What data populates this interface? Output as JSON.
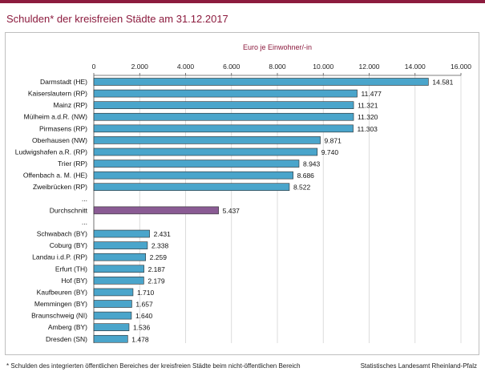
{
  "title": "Schulden* der kreisfreien Städte am 31.12.2017",
  "footnote": "* Schulden des integrierten öffentlichen Bereiches der kreisfreien Städte beim nicht-öffentlichen Bereich",
  "source": "Statistisches Landesamt Rheinland-Pfalz",
  "colors": {
    "bar": "#4aa5cb",
    "highlight": "#8a5b94",
    "accent": "#8c1b3e"
  },
  "chart_data": {
    "type": "bar",
    "orientation": "horizontal",
    "axis_title": "Euro je Einwohner/-in",
    "xlim": [
      0,
      16000
    ],
    "ticks": [
      0,
      2000,
      4000,
      6000,
      8000,
      10000,
      12000,
      14000,
      16000
    ],
    "tick_labels": [
      "0",
      "2.000",
      "4.000",
      "6.000",
      "8.000",
      "10.000",
      "12.000",
      "14.000",
      "16.000"
    ],
    "gridlines": true,
    "rows": [
      {
        "label": "Darmstadt (HE)",
        "value": 14581,
        "value_label": "14.581"
      },
      {
        "label": "Kaiserslautern (RP)",
        "value": 11477,
        "value_label": "11.477"
      },
      {
        "label": "Mainz (RP)",
        "value": 11321,
        "value_label": "11.321"
      },
      {
        "label": "Mülheim a.d.R. (NW)",
        "value": 11320,
        "value_label": "11.320"
      },
      {
        "label": "Pirmasens (RP)",
        "value": 11303,
        "value_label": "11.303"
      },
      {
        "label": "Oberhausen (NW)",
        "value": 9871,
        "value_label": "9.871"
      },
      {
        "label": "Ludwigshafen a.R. (RP)",
        "value": 9740,
        "value_label": "9.740"
      },
      {
        "label": "Trier (RP)",
        "value": 8943,
        "value_label": "8.943"
      },
      {
        "label": "Offenbach a. M. (HE)",
        "value": 8686,
        "value_label": "8.686"
      },
      {
        "label": "Zweibrücken (RP)",
        "value": 8522,
        "value_label": "8.522"
      },
      {
        "label": "...",
        "value": null,
        "value_label": ""
      },
      {
        "label": "Durchschnitt",
        "value": 5437,
        "value_label": "5.437",
        "highlight": true
      },
      {
        "label": "...",
        "value": null,
        "value_label": ""
      },
      {
        "label": "Schwabach (BY)",
        "value": 2431,
        "value_label": "2.431"
      },
      {
        "label": "Coburg (BY)",
        "value": 2338,
        "value_label": "2.338"
      },
      {
        "label": "Landau i.d.P. (RP)",
        "value": 2259,
        "value_label": "2.259"
      },
      {
        "label": "Erfurt (TH)",
        "value": 2187,
        "value_label": "2.187"
      },
      {
        "label": "Hof (BY)",
        "value": 2179,
        "value_label": "2.179"
      },
      {
        "label": "Kaufbeuren (BY)",
        "value": 1710,
        "value_label": "1.710"
      },
      {
        "label": "Memmingen (BY)",
        "value": 1657,
        "value_label": "1.657"
      },
      {
        "label": "Braunschweig (NI)",
        "value": 1640,
        "value_label": "1.640"
      },
      {
        "label": "Amberg (BY)",
        "value": 1536,
        "value_label": "1.536"
      },
      {
        "label": "Dresden (SN)",
        "value": 1478,
        "value_label": "1.478"
      }
    ]
  }
}
